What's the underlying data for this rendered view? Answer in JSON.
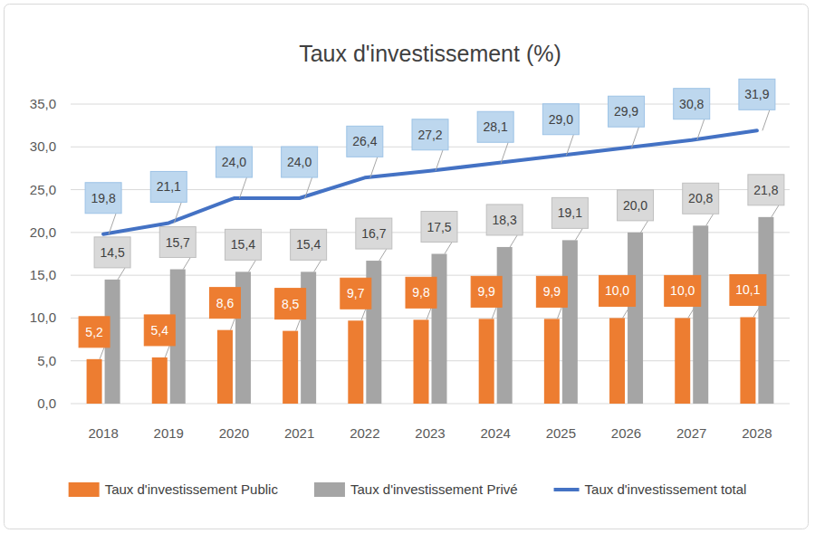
{
  "chart_data": {
    "type": "bar",
    "title": "Taux d'investissement (%)",
    "categories": [
      "2018",
      "2019",
      "2020",
      "2021",
      "2022",
      "2023",
      "2024",
      "2025",
      "2026",
      "2027",
      "2028"
    ],
    "series": [
      {
        "name": "Taux d'investissement Public",
        "type": "bar",
        "color": "#ed7d31",
        "values": [
          5.2,
          5.4,
          8.6,
          8.5,
          9.7,
          9.8,
          9.9,
          9.9,
          10.0,
          10.0,
          10.1
        ],
        "value_labels": [
          "5,2",
          "5,4",
          "8,6",
          "8,5",
          "9,7",
          "9,8",
          "9,9",
          "9,9",
          "10,0",
          "10,0",
          "10,1"
        ]
      },
      {
        "name": "Taux d'investissement Privé",
        "type": "bar",
        "color": "#a5a5a5",
        "values": [
          14.5,
          15.7,
          15.4,
          15.4,
          16.7,
          17.5,
          18.3,
          19.1,
          20.0,
          20.8,
          21.8
        ],
        "value_labels": [
          "14,5",
          "15,7",
          "15,4",
          "15,4",
          "16,7",
          "17,5",
          "18,3",
          "19,1",
          "20,0",
          "20,8",
          "21,8"
        ]
      },
      {
        "name": "Taux d'investissement total",
        "type": "line",
        "color": "#4472c4",
        "values": [
          19.8,
          21.1,
          24.0,
          24.0,
          26.4,
          27.2,
          28.1,
          29.0,
          29.9,
          30.8,
          31.9
        ],
        "value_labels": [
          "19,8",
          "21,1",
          "24,0",
          "24,0",
          "26,4",
          "27,2",
          "28,1",
          "29,0",
          "29,9",
          "30,8",
          "31,9"
        ]
      }
    ],
    "ylim": [
      0,
      35
    ],
    "yticks": [
      {
        "value": 0,
        "label": "0,0"
      },
      {
        "value": 5,
        "label": "5,0"
      },
      {
        "value": 10,
        "label": "10,0"
      },
      {
        "value": 15,
        "label": "15,0"
      },
      {
        "value": 20,
        "label": "20,0"
      },
      {
        "value": 25,
        "label": "25,0"
      },
      {
        "value": 30,
        "label": "30,0"
      },
      {
        "value": 35,
        "label": "35,0"
      }
    ],
    "grid": true,
    "legend": "bottom",
    "data_labels": true
  }
}
